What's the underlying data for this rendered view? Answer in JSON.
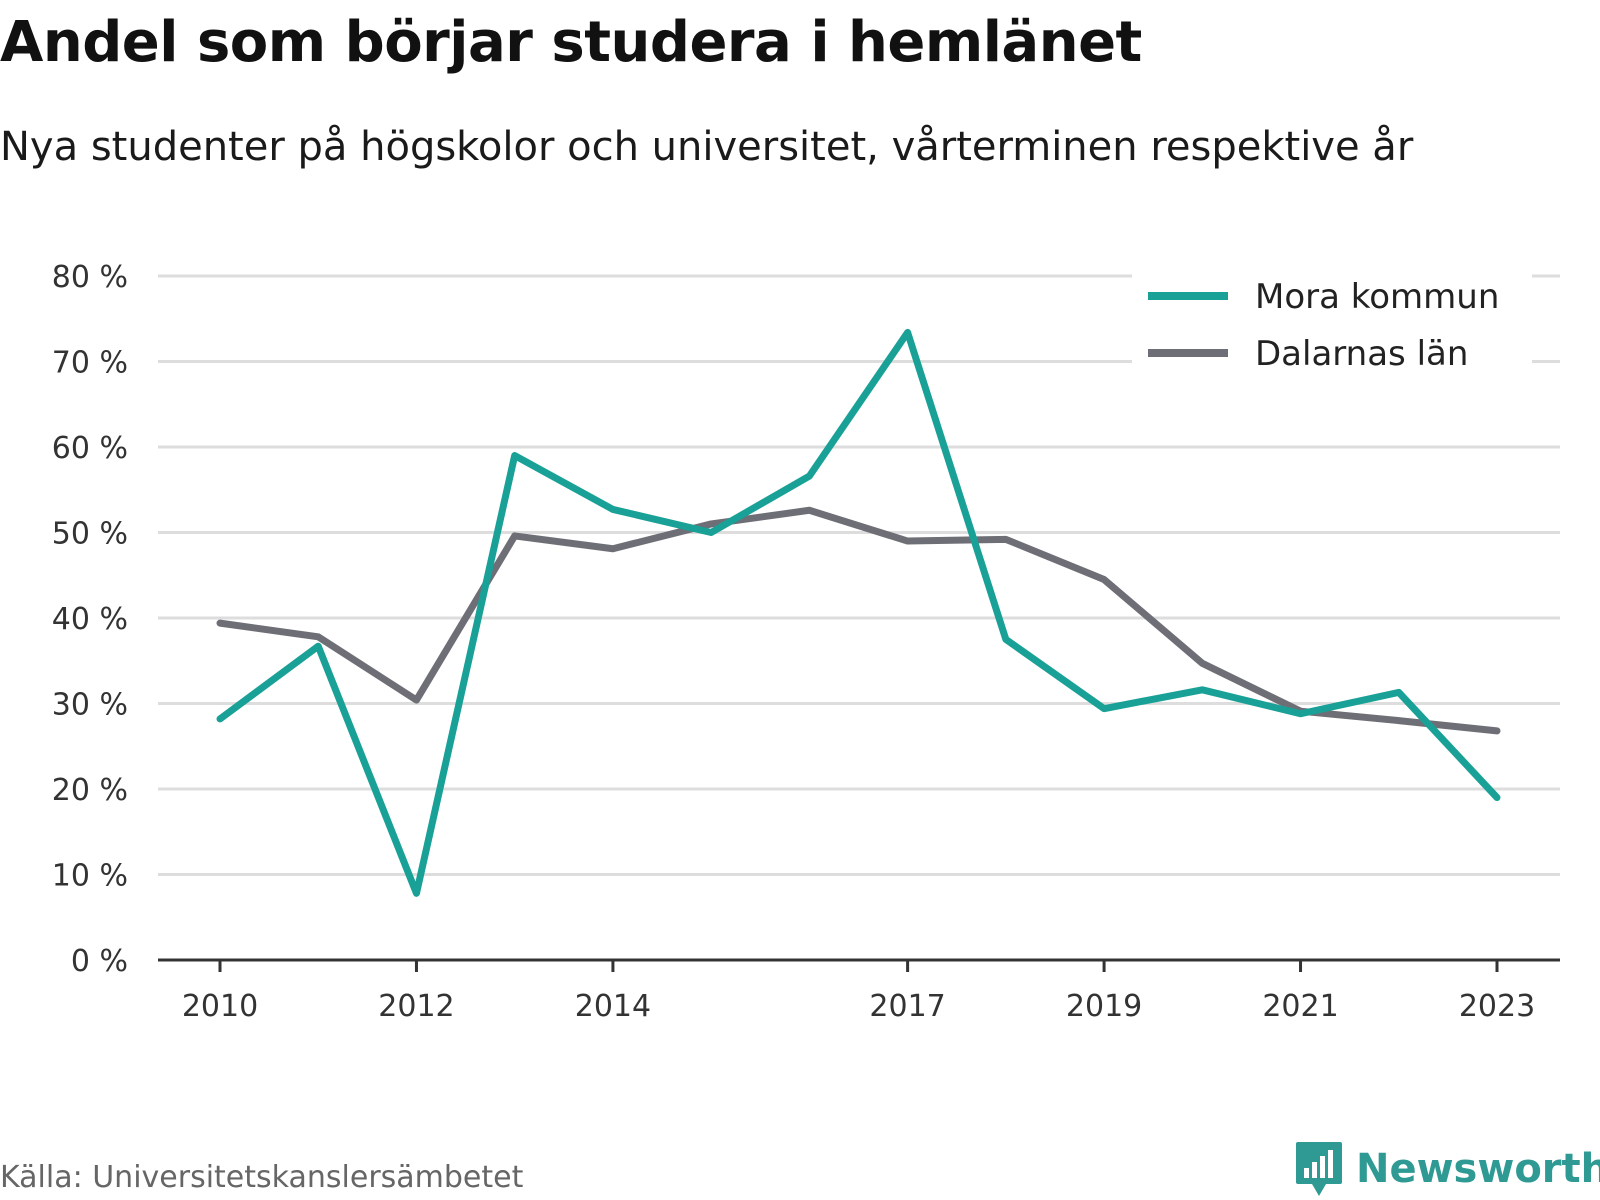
{
  "header": {
    "title": "Andel som börjar studera i hemlänet",
    "subtitle": "Nya studenter på högskolor och universitet, vårterminen respektive år"
  },
  "footer": {
    "source": "Källa: Universitetskanslersämbetet",
    "brand": "Newsworthy",
    "brand_icon": "newsworthy-logo-icon",
    "brand_color": "#2e9a93"
  },
  "chart_data": {
    "type": "line",
    "x": [
      2010,
      2011,
      2012,
      2013,
      2014,
      2015,
      2016,
      2017,
      2018,
      2019,
      2020,
      2021,
      2022,
      2023
    ],
    "x_tick_labels": [
      "2010",
      "2012",
      "2014",
      "2017",
      "2019",
      "2021",
      "2023"
    ],
    "y_ticks": [
      0,
      10,
      20,
      30,
      40,
      50,
      60,
      70,
      80
    ],
    "y_tick_labels": [
      "0 %",
      "10 %",
      "20 %",
      "30 %",
      "40 %",
      "50 %",
      "60 %",
      "70 %",
      "80 %"
    ],
    "ylim": [
      0,
      80
    ],
    "y_unit": "%",
    "grid": true,
    "legend_position": "top-right",
    "series": [
      {
        "name": "Mora kommun",
        "color": "#1aa197",
        "values": [
          28.2,
          36.7,
          7.8,
          59.0,
          52.7,
          50.0,
          56.6,
          73.4,
          37.5,
          29.4,
          31.6,
          28.8,
          31.3,
          19.0
        ]
      },
      {
        "name": "Dalarnas län",
        "color": "#6e6e76",
        "values": [
          39.4,
          37.8,
          30.4,
          49.6,
          48.1,
          51.0,
          52.6,
          49.0,
          49.2,
          44.5,
          34.7,
          29.1,
          28.0,
          26.8
        ]
      }
    ]
  }
}
